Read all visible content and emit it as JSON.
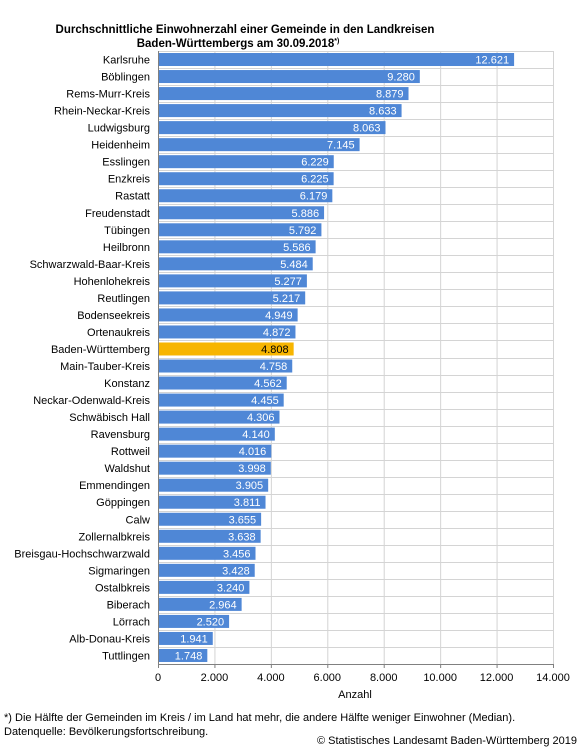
{
  "chart_data": {
    "type": "bar",
    "orientation": "horizontal",
    "title_line1": "Durchschnittliche Einwohnerzahl einer Gemeinde in den Landkreisen",
    "title_line2": "Baden-Württembergs am 30.09.2018",
    "title_sup": "*)",
    "xlabel": "Anzahl",
    "xlim": [
      0,
      14000
    ],
    "ticks": [
      0,
      2000,
      4000,
      6000,
      8000,
      10000,
      12000,
      14000
    ],
    "tick_labels": [
      "0",
      "2.000",
      "4.000",
      "6.000",
      "8.000",
      "10.000",
      "12.000",
      "14.000"
    ],
    "grid": true,
    "categories": [
      "Karlsruhe",
      "Böblingen",
      "Rems-Murr-Kreis",
      "Rhein-Neckar-Kreis",
      "Ludwigsburg",
      "Heidenheim",
      "Esslingen",
      "Enzkreis",
      "Rastatt",
      "Freudenstadt",
      "Tübingen",
      "Heilbronn",
      "Schwarzwald-Baar-Kreis",
      "Hohenlohekreis",
      "Reutlingen",
      "Bodenseekreis",
      "Ortenaukreis",
      "Baden-Württemberg",
      "Main-Tauber-Kreis",
      "Konstanz",
      "Neckar-Odenwald-Kreis",
      "Schwäbisch Hall",
      "Ravensburg",
      "Rottweil",
      "Waldshut",
      "Emmendingen",
      "Göppingen",
      "Calw",
      "Zollernalbkreis",
      "Breisgau-Hochschwarzwald",
      "Sigmaringen",
      "Ostalbkreis",
      "Biberach",
      "Lörrach",
      "Alb-Donau-Kreis",
      "Tuttlingen"
    ],
    "values": [
      12621,
      9280,
      8879,
      8633,
      8063,
      7145,
      6229,
      6225,
      6179,
      5886,
      5792,
      5586,
      5484,
      5277,
      5217,
      4949,
      4872,
      4808,
      4758,
      4562,
      4455,
      4306,
      4140,
      4016,
      3998,
      3905,
      3811,
      3655,
      3638,
      3456,
      3428,
      3240,
      2964,
      2520,
      1941,
      1748
    ],
    "value_labels": [
      "12.621",
      "9.280",
      "8.879",
      "8.633",
      "8.063",
      "7.145",
      "6.229",
      "6.225",
      "6.179",
      "5.886",
      "5.792",
      "5.586",
      "5.484",
      "5.277",
      "5.217",
      "4.949",
      "4.872",
      "4.808",
      "4.758",
      "4.562",
      "4.455",
      "4.306",
      "4.140",
      "4.016",
      "3.998",
      "3.905",
      "3.811",
      "3.655",
      "3.638",
      "3.456",
      "3.428",
      "3.240",
      "2.964",
      "2.520",
      "1.941",
      "1.748"
    ],
    "highlight_category": "Baden-Württemberg",
    "colors": {
      "bar": "#4f87d6",
      "highlight": "#f7b500",
      "grid": "#d4d4d4",
      "axis": "#808080"
    }
  },
  "footnotes": {
    "line1": "*) Die Hälfte der Gemeinden im Kreis / im Land hat mehr, die andere Hälfte weniger Einwohner (Median).",
    "line2": "Datenquelle: Bevölkerungsfortschreibung.",
    "copyright": "© Statistisches Landesamt Baden-Württemberg 2019"
  }
}
